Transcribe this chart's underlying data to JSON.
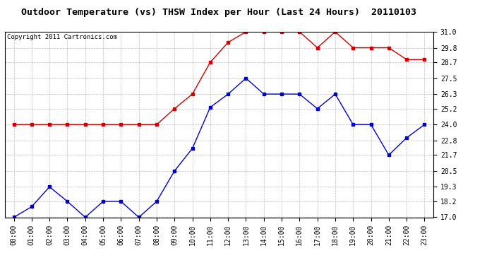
{
  "title": "Outdoor Temperature (vs) THSW Index per Hour (Last 24 Hours)  20110103",
  "copyright": "Copyright 2011 Cartronics.com",
  "hours": [
    "00:00",
    "01:00",
    "02:00",
    "03:00",
    "04:00",
    "05:00",
    "06:00",
    "07:00",
    "08:00",
    "09:00",
    "10:00",
    "11:00",
    "12:00",
    "13:00",
    "14:00",
    "15:00",
    "16:00",
    "17:00",
    "18:00",
    "19:00",
    "20:00",
    "21:00",
    "22:00",
    "23:00"
  ],
  "blue_data": [
    17.0,
    17.8,
    19.3,
    18.2,
    17.0,
    18.2,
    18.2,
    17.0,
    18.2,
    20.5,
    22.2,
    25.3,
    26.3,
    27.5,
    26.3,
    26.3,
    26.3,
    25.2,
    26.3,
    24.0,
    24.0,
    21.7,
    23.0,
    24.0
  ],
  "red_data": [
    24.0,
    24.0,
    24.0,
    24.0,
    24.0,
    24.0,
    24.0,
    24.0,
    24.0,
    25.2,
    26.3,
    28.7,
    30.2,
    31.0,
    31.0,
    31.0,
    31.0,
    29.8,
    31.0,
    29.8,
    29.8,
    29.8,
    28.9,
    28.9
  ],
  "ylim_min": 17.0,
  "ylim_max": 31.0,
  "yticks": [
    17.0,
    18.2,
    19.3,
    20.5,
    21.7,
    22.8,
    24.0,
    25.2,
    26.3,
    27.5,
    28.7,
    29.8,
    31.0
  ],
  "blue_color": "#0000cc",
  "red_color": "#cc0000",
  "background_color": "#ffffff",
  "plot_bg_color": "#ffffff",
  "grid_color": "#bbbbbb",
  "title_fontsize": 9.5,
  "copyright_fontsize": 6.5,
  "tick_fontsize": 7.0
}
